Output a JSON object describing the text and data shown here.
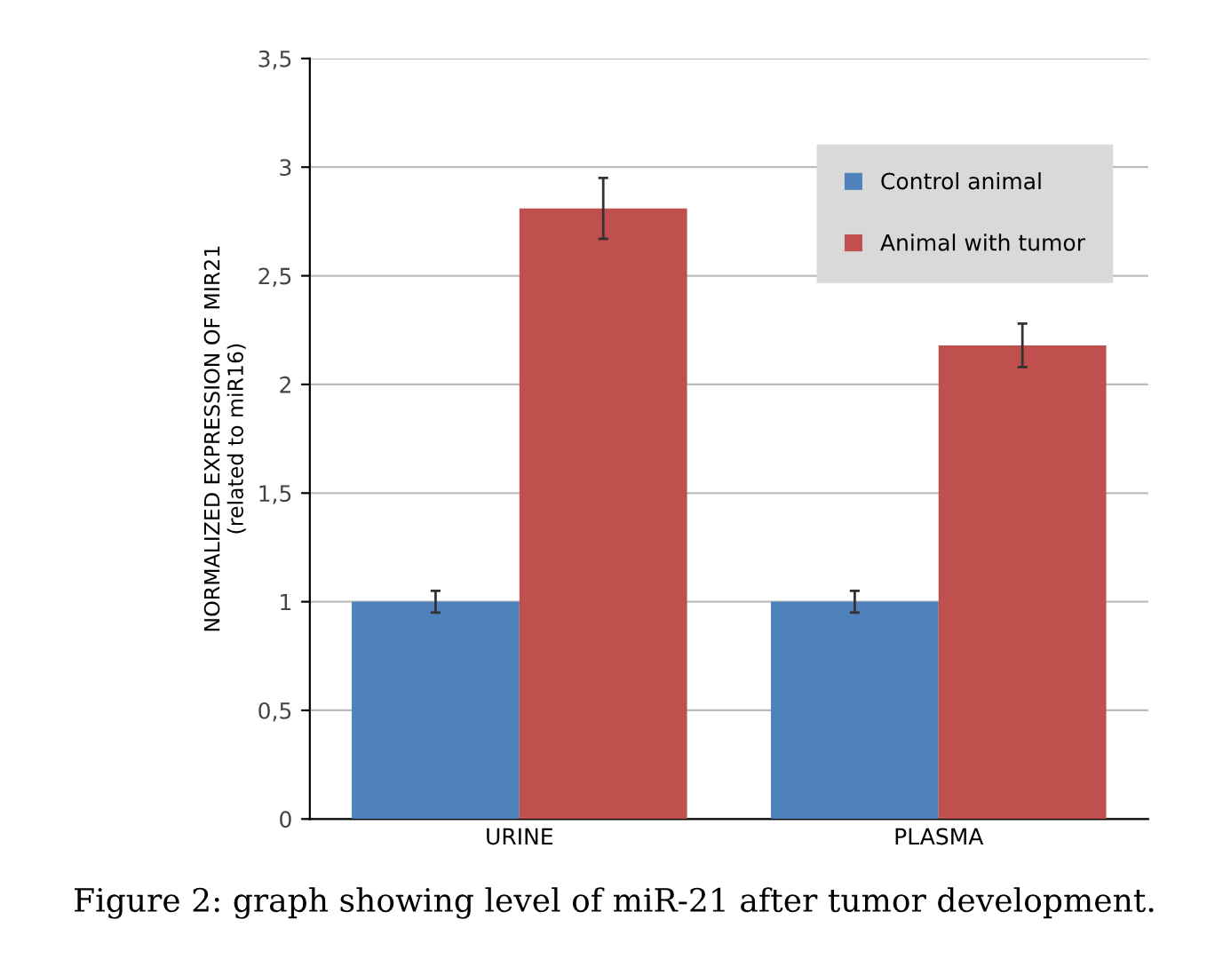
{
  "chart_data": {
    "type": "bar",
    "ylabel": "NORMALIZED EXPRESSION OF MIR21\n(related to miR16)",
    "categories": [
      "URINE",
      "PLASMA"
    ],
    "series": [
      {
        "name": "Control animal",
        "color": "#4f81bd",
        "values": [
          1.0,
          1.0
        ],
        "errors": [
          0.05,
          0.05
        ]
      },
      {
        "name": "Animal with tumor",
        "color": "#c0504d",
        "values": [
          2.81,
          2.18
        ],
        "errors": [
          0.14,
          0.1
        ]
      }
    ],
    "ylim": [
      0,
      3.5
    ],
    "yticks": [
      0,
      {
        "value": 0.5,
        "label": "0,5"
      },
      1,
      {
        "value": 1.5,
        "label": "1,5"
      },
      2,
      {
        "value": 2.5,
        "label": "2,5"
      },
      3,
      {
        "value": 3.5,
        "label": "3,5"
      }
    ],
    "grid": "y",
    "legend": "top right",
    "annotations": [
      "Figure 2: graph showing level of miR-21 after tumor development."
    ]
  }
}
